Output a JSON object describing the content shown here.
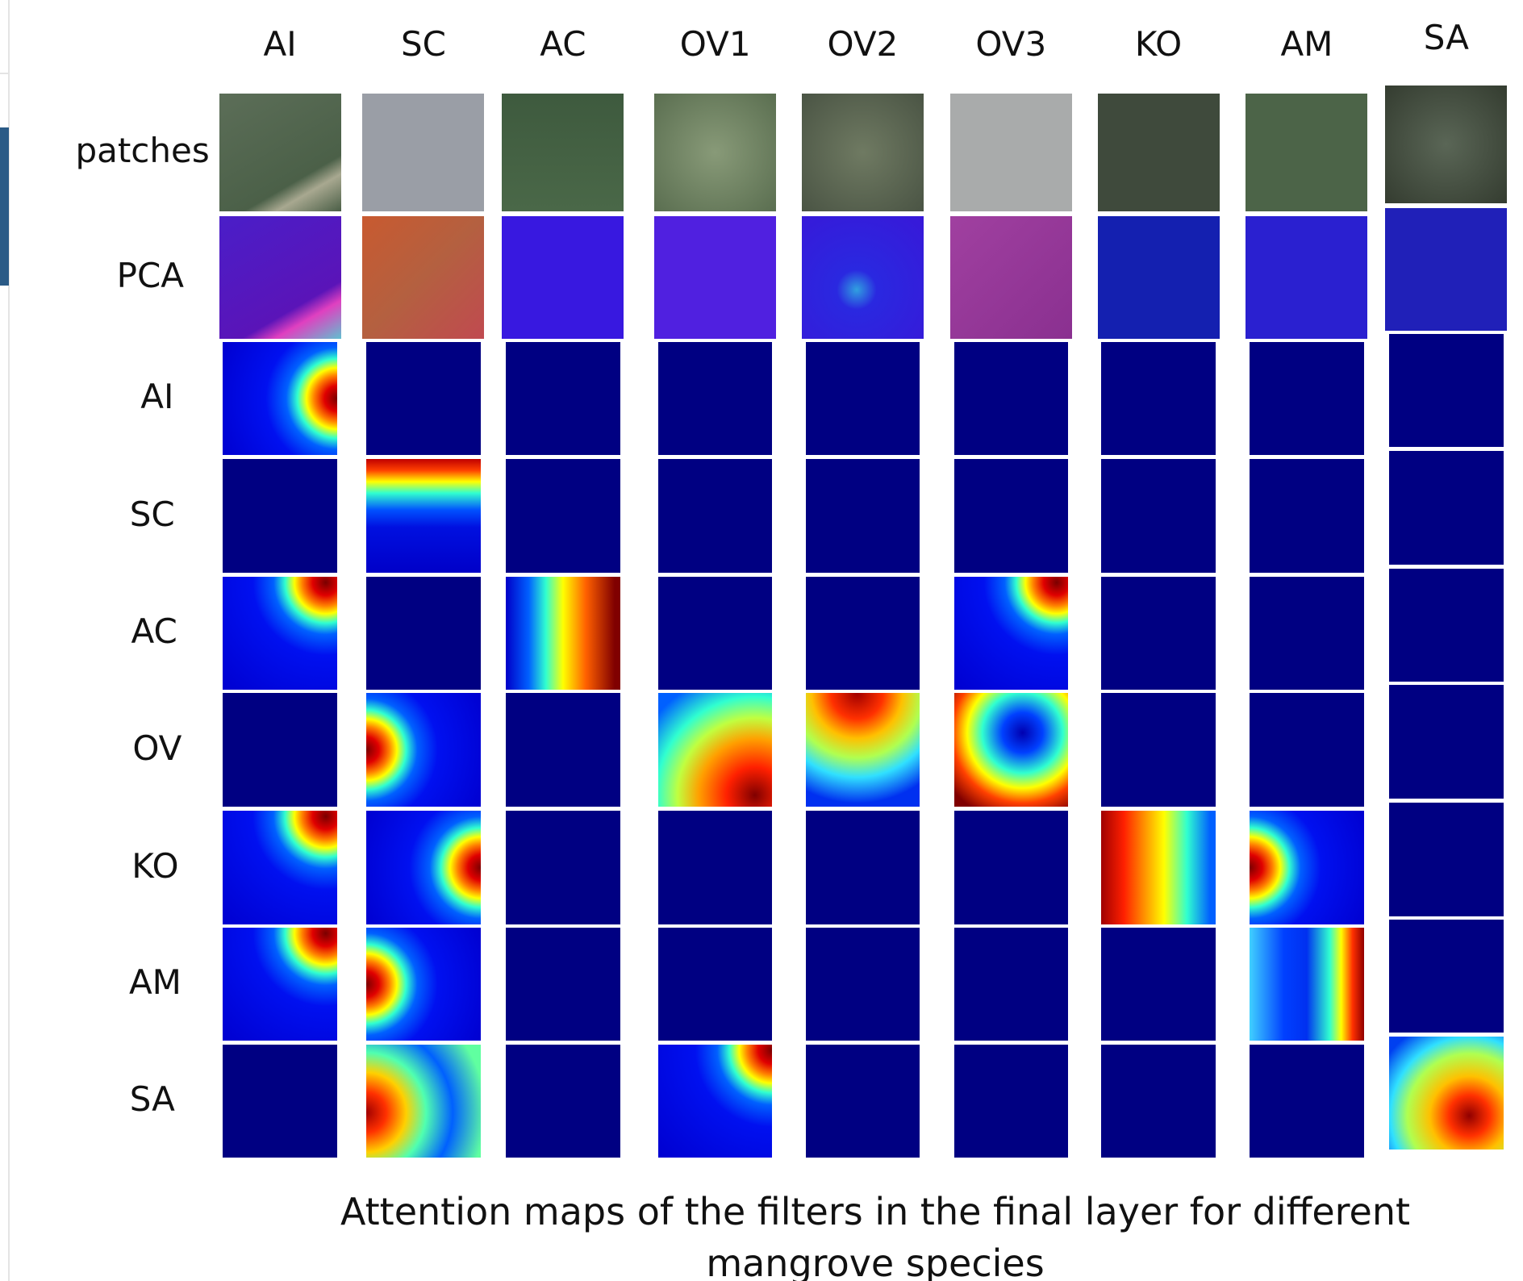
{
  "column_headers": [
    "AI",
    "SC",
    "AC",
    "OV1",
    "OV2",
    "OV3",
    "KO",
    "AM",
    "SA"
  ],
  "row_labels": [
    "patches",
    "PCA",
    "AI",
    "SC",
    "AC",
    "OV",
    "KO",
    "AM",
    "SA"
  ],
  "caption": "Attention maps of the filters in the final layer for different mangrove species"
}
